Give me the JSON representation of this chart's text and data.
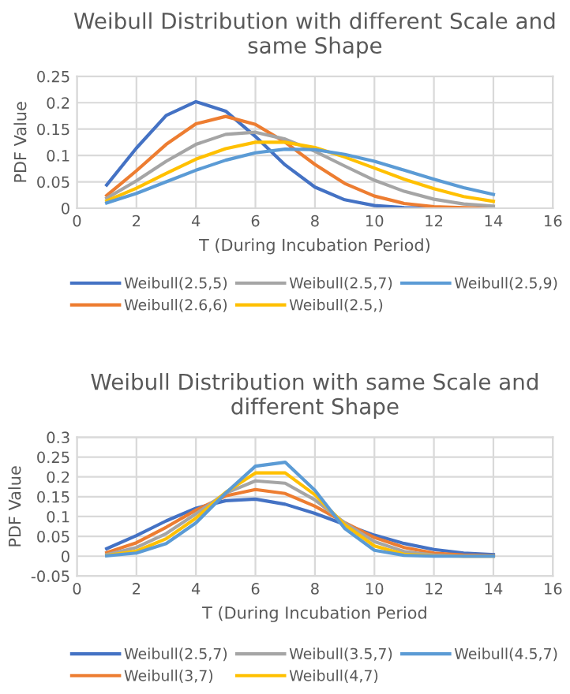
{
  "chart_data": [
    {
      "type": "line",
      "title": "Weibull Distribution with different Scale and same Shape",
      "xlabel": "T (During Incubation Period)",
      "ylabel": "PDF Value",
      "x": [
        1,
        2,
        3,
        4,
        5,
        6,
        7,
        8,
        9,
        10,
        11,
        12,
        13,
        14
      ],
      "xlim": [
        0,
        16
      ],
      "xticks": [
        0,
        2,
        4,
        6,
        8,
        10,
        12,
        14,
        16
      ],
      "ylim": [
        0,
        0.25
      ],
      "yticks": [
        0,
        0.05,
        0.1,
        0.15,
        0.2,
        0.25
      ],
      "grid": true,
      "legend": "bottom",
      "marker": "none",
      "line_style": "solid",
      "series": [
        {
          "name": "Weibull(2.5,5)",
          "color": "#4472c4",
          "values": [
            0.044,
            0.114,
            0.176,
            0.202,
            0.184,
            0.136,
            0.082,
            0.04,
            0.016,
            0.005,
            0.001,
            0,
            0,
            0
          ]
        },
        {
          "name": "Weibull(2.6,6)",
          "color": "#ed7d31",
          "values": [
            0.024,
            0.071,
            0.121,
            0.16,
            0.174,
            0.159,
            0.125,
            0.083,
            0.047,
            0.023,
            0.009,
            0.003,
            0.001,
            0
          ]
        },
        {
          "name": "Weibull(2.5,7)",
          "color": "#a5a5a5",
          "values": [
            0.019,
            0.052,
            0.089,
            0.121,
            0.14,
            0.144,
            0.131,
            0.108,
            0.08,
            0.053,
            0.032,
            0.017,
            0.008,
            0.004
          ]
        },
        {
          "name": "Weibull(2.5,)",
          "color": "#ffc000",
          "values": [
            0.014,
            0.038,
            0.066,
            0.093,
            0.113,
            0.125,
            0.125,
            0.115,
            0.097,
            0.076,
            0.055,
            0.037,
            0.022,
            0.013
          ]
        },
        {
          "name": "Weibull(2.5,9)",
          "color": "#5b9bd5",
          "values": [
            0.01,
            0.028,
            0.05,
            0.072,
            0.091,
            0.105,
            0.112,
            0.111,
            0.102,
            0.089,
            0.072,
            0.055,
            0.039,
            0.026
          ]
        }
      ]
    },
    {
      "type": "line",
      "title": "Weibull Distribution with same Scale and different Shape",
      "xlabel": "T (During Incubation Period",
      "ylabel": "PDF Value",
      "x": [
        1,
        2,
        3,
        4,
        5,
        6,
        7,
        8,
        9,
        10,
        11,
        12,
        13,
        14
      ],
      "xlim": [
        0,
        16
      ],
      "xticks": [
        0,
        2,
        4,
        6,
        8,
        10,
        12,
        14,
        16
      ],
      "ylim": [
        -0.05,
        0.3
      ],
      "yticks": [
        {
          "value": -0.05,
          "label": "-0.05"
        },
        0,
        0.05,
        0.1,
        0.15,
        0.2,
        0.25,
        0.3
      ],
      "grid": true,
      "legend": "bottom",
      "marker": "none",
      "line_style": "solid",
      "series": [
        {
          "name": "Weibull(2.5,7)",
          "color": "#4472c4",
          "values": [
            0.019,
            0.052,
            0.089,
            0.121,
            0.14,
            0.144,
            0.131,
            0.108,
            0.08,
            0.053,
            0.032,
            0.017,
            0.008,
            0.004
          ]
        },
        {
          "name": "Weibull(3,7)",
          "color": "#ed7d31",
          "values": [
            0.009,
            0.034,
            0.073,
            0.116,
            0.152,
            0.168,
            0.158,
            0.126,
            0.085,
            0.047,
            0.022,
            0.008,
            0.003,
            0.001
          ]
        },
        {
          "name": "Weibull(3.5,7)",
          "color": "#a5a5a5",
          "values": [
            0.004,
            0.022,
            0.057,
            0.107,
            0.159,
            0.19,
            0.184,
            0.142,
            0.084,
            0.037,
            0.012,
            0.003,
            0,
            0
          ]
        },
        {
          "name": "Weibull(4,7)",
          "color": "#ffc000",
          "values": [
            0.002,
            0.013,
            0.044,
            0.096,
            0.161,
            0.21,
            0.21,
            0.155,
            0.079,
            0.026,
            0.005,
            0.001,
            0,
            0
          ]
        },
        {
          "name": "Weibull(4.5,7)",
          "color": "#5b9bd5",
          "values": [
            0.001,
            0.008,
            0.032,
            0.084,
            0.159,
            0.227,
            0.237,
            0.166,
            0.07,
            0.015,
            0.002,
            0,
            0,
            0
          ]
        }
      ]
    }
  ]
}
